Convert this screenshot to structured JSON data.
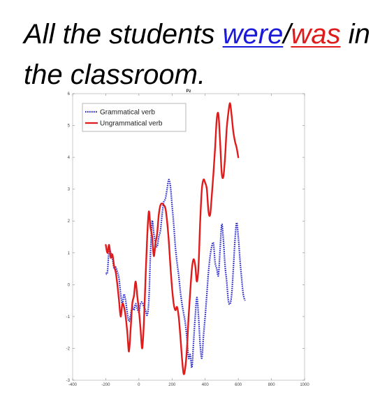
{
  "slide": {
    "sentence": {
      "part1": "All the students ",
      "option1": "were",
      "slash": "/",
      "option2": "was",
      "part2": " in the classroom."
    },
    "colors": {
      "option1": "#1a1adb",
      "option2": "#e01b1b",
      "text": "#000000"
    }
  },
  "chart_data": {
    "type": "line",
    "title": "Pz",
    "xlabel": "",
    "ylabel": "",
    "xlim": [
      -400,
      1000
    ],
    "ylim": [
      -3,
      6
    ],
    "xticks": [
      -400,
      -200,
      0,
      200,
      400,
      600,
      800,
      1000
    ],
    "yticks": [
      -3,
      -2,
      -1,
      0,
      1,
      2,
      3,
      4,
      5,
      6
    ],
    "xtick_labels": [
      "-400",
      "-200",
      "0",
      "200",
      "400",
      "600",
      "800",
      "1000"
    ],
    "ytick_labels": [
      "-3",
      "-2",
      "-1",
      "0",
      "1",
      "2",
      "3",
      "4",
      "5",
      "6"
    ],
    "grid": false,
    "legend_position": "top-left",
    "series": [
      {
        "name": "Grammatical verb",
        "color": "#2222cc",
        "style": "dotted",
        "points": [
          [
            -200,
            0.35
          ],
          [
            -190,
            0.4
          ],
          [
            -180,
            1.1
          ],
          [
            -170,
            1.0
          ],
          [
            -160,
            0.85
          ],
          [
            -150,
            0.5
          ],
          [
            -140,
            0.55
          ],
          [
            -130,
            0.4
          ],
          [
            -120,
            0.2
          ],
          [
            -110,
            -0.3
          ],
          [
            -100,
            -0.6
          ],
          [
            -90,
            -0.3
          ],
          [
            -80,
            -0.5
          ],
          [
            -70,
            -0.9
          ],
          [
            -60,
            -1.15
          ],
          [
            -50,
            -0.95
          ],
          [
            -40,
            -0.7
          ],
          [
            -30,
            -0.8
          ],
          [
            -20,
            -0.6
          ],
          [
            -10,
            -0.75
          ],
          [
            0,
            -0.85
          ],
          [
            10,
            -0.6
          ],
          [
            20,
            -0.55
          ],
          [
            30,
            -0.7
          ],
          [
            40,
            -0.8
          ],
          [
            50,
            -0.95
          ],
          [
            60,
            -0.5
          ],
          [
            70,
            1.0
          ],
          [
            80,
            2.0
          ],
          [
            90,
            1.6
          ],
          [
            100,
            1.3
          ],
          [
            110,
            1.2
          ],
          [
            120,
            1.5
          ],
          [
            130,
            1.7
          ],
          [
            140,
            2.2
          ],
          [
            150,
            2.6
          ],
          [
            160,
            2.7
          ],
          [
            170,
            3.0
          ],
          [
            180,
            3.3
          ],
          [
            190,
            3.1
          ],
          [
            200,
            2.5
          ],
          [
            210,
            1.9
          ],
          [
            220,
            1.2
          ],
          [
            230,
            0.7
          ],
          [
            240,
            0.3
          ],
          [
            250,
            -0.2
          ],
          [
            260,
            -0.6
          ],
          [
            270,
            -0.9
          ],
          [
            280,
            -1.2
          ],
          [
            290,
            -1.7
          ],
          [
            300,
            -2.3
          ],
          [
            310,
            -2.2
          ],
          [
            320,
            -2.6
          ],
          [
            330,
            -1.8
          ],
          [
            340,
            -1.0
          ],
          [
            350,
            -0.4
          ],
          [
            360,
            -1.0
          ],
          [
            370,
            -1.9
          ],
          [
            380,
            -2.3
          ],
          [
            390,
            -1.6
          ],
          [
            400,
            -1.0
          ],
          [
            410,
            -0.3
          ],
          [
            420,
            0.4
          ],
          [
            430,
            0.9
          ],
          [
            440,
            1.2
          ],
          [
            450,
            1.3
          ],
          [
            460,
            0.7
          ],
          [
            470,
            0.5
          ],
          [
            480,
            0.3
          ],
          [
            490,
            1.1
          ],
          [
            500,
            1.9
          ],
          [
            510,
            1.4
          ],
          [
            520,
            0.6
          ],
          [
            530,
            0.1
          ],
          [
            540,
            -0.5
          ],
          [
            550,
            -0.6
          ],
          [
            560,
            -0.3
          ],
          [
            570,
            0.5
          ],
          [
            580,
            1.4
          ],
          [
            590,
            1.95
          ],
          [
            600,
            1.5
          ],
          [
            610,
            0.8
          ],
          [
            620,
            0.2
          ],
          [
            630,
            -0.3
          ],
          [
            640,
            -0.5
          ]
        ]
      },
      {
        "name": "Ungrammatical verb",
        "color": "#e01b1b",
        "style": "solid",
        "points": [
          [
            -200,
            1.25
          ],
          [
            -190,
            1.0
          ],
          [
            -180,
            1.25
          ],
          [
            -170,
            0.85
          ],
          [
            -160,
            0.95
          ],
          [
            -150,
            0.6
          ],
          [
            -140,
            0.4
          ],
          [
            -130,
            0.0
          ],
          [
            -120,
            -0.5
          ],
          [
            -110,
            -1.0
          ],
          [
            -100,
            -0.6
          ],
          [
            -90,
            -0.7
          ],
          [
            -80,
            -1.0
          ],
          [
            -70,
            -1.5
          ],
          [
            -60,
            -2.1
          ],
          [
            -50,
            -1.4
          ],
          [
            -40,
            -0.6
          ],
          [
            -30,
            -0.35
          ],
          [
            -20,
            0.1
          ],
          [
            -10,
            -0.35
          ],
          [
            0,
            -0.8
          ],
          [
            10,
            -1.4
          ],
          [
            20,
            -2.0
          ],
          [
            30,
            -1.2
          ],
          [
            40,
            0.2
          ],
          [
            50,
            1.5
          ],
          [
            60,
            2.3
          ],
          [
            70,
            1.8
          ],
          [
            80,
            1.5
          ],
          [
            90,
            0.9
          ],
          [
            100,
            1.3
          ],
          [
            110,
            1.6
          ],
          [
            120,
            2.2
          ],
          [
            130,
            2.5
          ],
          [
            140,
            2.55
          ],
          [
            150,
            2.5
          ],
          [
            160,
            2.4
          ],
          [
            170,
            2.0
          ],
          [
            180,
            1.4
          ],
          [
            190,
            0.6
          ],
          [
            200,
            -0.1
          ],
          [
            210,
            -0.6
          ],
          [
            220,
            -0.8
          ],
          [
            230,
            -0.7
          ],
          [
            240,
            -1.0
          ],
          [
            250,
            -1.6
          ],
          [
            260,
            -2.3
          ],
          [
            270,
            -2.8
          ],
          [
            280,
            -2.6
          ],
          [
            290,
            -2.0
          ],
          [
            300,
            -1.0
          ],
          [
            310,
            -0.2
          ],
          [
            320,
            0.5
          ],
          [
            330,
            0.8
          ],
          [
            340,
            0.6
          ],
          [
            350,
            0.1
          ],
          [
            360,
            0.6
          ],
          [
            370,
            2.0
          ],
          [
            380,
            3.0
          ],
          [
            390,
            3.3
          ],
          [
            400,
            3.2
          ],
          [
            410,
            3.0
          ],
          [
            420,
            2.3
          ],
          [
            430,
            2.2
          ],
          [
            440,
            2.8
          ],
          [
            450,
            3.5
          ],
          [
            460,
            4.3
          ],
          [
            470,
            5.2
          ],
          [
            480,
            5.35
          ],
          [
            490,
            4.5
          ],
          [
            500,
            3.5
          ],
          [
            510,
            3.4
          ],
          [
            520,
            4.0
          ],
          [
            530,
            4.9
          ],
          [
            540,
            5.4
          ],
          [
            550,
            5.7
          ],
          [
            560,
            5.3
          ],
          [
            570,
            4.8
          ],
          [
            580,
            4.5
          ],
          [
            590,
            4.3
          ],
          [
            600,
            4.0
          ]
        ]
      }
    ]
  }
}
